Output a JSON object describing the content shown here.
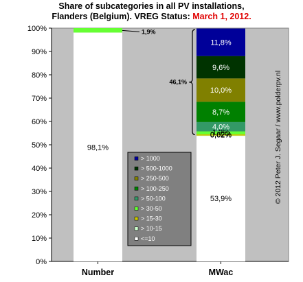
{
  "chart_data": {
    "type": "bar",
    "stacked": true,
    "title_lines": [
      "Share of subcategories in all PV installations,",
      "Flanders (Belgium). VREG Status: "
    ],
    "title_date": "March 1, 2012.",
    "categories": [
      "Number",
      "MWac"
    ],
    "ylim": [
      0,
      100
    ],
    "y_ticks": [
      "0%",
      "10%",
      "20%",
      "30%",
      "40%",
      "50%",
      "60%",
      "70%",
      "80%",
      "90%",
      "100%"
    ],
    "grid": false,
    "legend_position": "bottom-center",
    "series": [
      {
        "name": "<=10",
        "color": "#ffffff",
        "values": [
          98.1,
          53.9
        ]
      },
      {
        "name": "> 10-15",
        "color": "#ccffcc",
        "values": [
          0.0,
          0.02
        ]
      },
      {
        "name": "> 15-30",
        "color": "#c8c800",
        "values": [
          0.0,
          0.62
        ]
      },
      {
        "name": "> 30-50",
        "color": "#66ff33",
        "values": [
          1.9,
          1.2
        ]
      },
      {
        "name": "> 50-100",
        "color": "#339966",
        "values": [
          0.0,
          4.0
        ]
      },
      {
        "name": "> 100-250",
        "color": "#008000",
        "values": [
          0.0,
          8.7
        ]
      },
      {
        "name": "> 250-500",
        "color": "#808000",
        "values": [
          0.0,
          10.0
        ]
      },
      {
        "name": "> 500-1000",
        "color": "#003300",
        "values": [
          0.0,
          9.6
        ]
      },
      {
        "name": "> 1000",
        "color": "#000099",
        "values": [
          0.0,
          11.8
        ]
      }
    ],
    "data_labels": [
      {
        "category": "Number",
        "text": "98,1%",
        "color": "#000000",
        "at": 49
      },
      {
        "category": "MWac",
        "text": "53,9%",
        "color": "#000000",
        "at": 27
      },
      {
        "category": "MWac",
        "text": "0,02%",
        "color": "#000000",
        "at": 54.3
      },
      {
        "category": "MWac",
        "text": "0,62%",
        "color": "#000000",
        "at": 54.6
      },
      {
        "category": "MWac",
        "text": "1,2%",
        "color": "#000000",
        "at": 55.4
      },
      {
        "category": "MWac",
        "text": "4,0%",
        "color": "#ffffff",
        "at": 57.8
      },
      {
        "category": "MWac",
        "text": "8,7%",
        "color": "#ffffff",
        "at": 64.1
      },
      {
        "category": "MWac",
        "text": "10,0%",
        "color": "#ffffff",
        "at": 73.5
      },
      {
        "category": "MWac",
        "text": "9,6%",
        "color": "#ffffff",
        "at": 83.3
      },
      {
        "category": "MWac",
        "text": "11,8%",
        "color": "#ffffff",
        "at": 94.0
      }
    ],
    "annotations": [
      {
        "text": "1,9%",
        "category": "Number",
        "at": 99.0
      },
      {
        "text": "46,1%",
        "category": "MWac",
        "from": 54.0,
        "to": 100.0
      }
    ],
    "copyright": "© 2012 Peter J. Segaar / www.polderpv.nl",
    "legend_order": [
      "> 1000",
      "> 500-1000",
      "> 250-500",
      "> 100-250",
      "> 50-100",
      "> 30-50",
      "> 15-30",
      "> 10-15",
      "<=10"
    ]
  }
}
